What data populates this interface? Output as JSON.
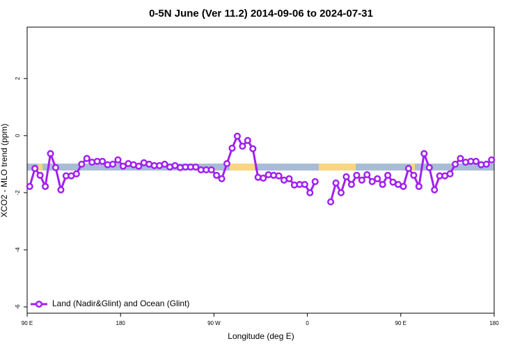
{
  "chart_data": {
    "type": "line",
    "title": "0-5N June (Ver 11.2)   2014-09-06 to 2024-07-31",
    "xlabel": "Longitude (deg E)",
    "ylabel": "XCO2 - MLO trend (ppm)",
    "xlim": [
      90,
      540
    ],
    "ylim": [
      -6.22,
      3.8
    ],
    "xticks": [
      {
        "value": 90,
        "label": "90 E"
      },
      180,
      {
        "value": 270,
        "label": "90 W"
      },
      {
        "value": 360,
        "label": "0"
      },
      {
        "value": 450,
        "label": "90 E"
      },
      {
        "value": 540,
        "label": "180"
      }
    ],
    "yticks": [
      -6,
      -4,
      -2,
      0,
      2
    ],
    "legend": "bottom-left",
    "x": [
      92.5,
      97.5,
      102.5,
      107.5,
      112.5,
      117.5,
      122.5,
      127.5,
      132.5,
      137.5,
      142.5,
      147.5,
      152.5,
      157.5,
      162.5,
      167.5,
      172.5,
      177.5,
      182.5,
      187.5,
      192.5,
      197.5,
      202.5,
      207.5,
      212.5,
      217.5,
      222.5,
      227.5,
      232.5,
      237.5,
      242.5,
      247.5,
      252.5,
      257.5,
      262.5,
      267.5,
      272.5,
      277.5,
      282.5,
      287.5,
      292.5,
      297.5,
      302.5,
      307.5,
      312.5,
      317.5,
      322.5,
      327.5,
      332.5,
      337.5,
      342.5,
      347.5,
      352.5,
      357.5,
      362.5,
      367.5,
      372.5,
      377.5,
      382.5,
      387.5,
      392.5,
      397.5,
      402.5,
      407.5,
      412.5,
      417.5,
      422.5,
      427.5,
      432.5,
      437.5,
      442.5,
      447.5,
      452.5,
      457.5,
      462.5,
      467.5,
      472.5,
      477.5,
      482.5,
      487.5,
      492.5,
      497.5,
      502.5,
      507.5,
      512.5,
      517.5,
      522.5,
      527.5,
      532.5,
      537.5
    ],
    "series": [
      {
        "name": "Land (Nadir&Glint) and Ocean (Glint)",
        "color": "#a020f0",
        "values": [
          -1.78,
          -1.15,
          -1.39,
          -1.78,
          -0.63,
          -1.12,
          -1.9,
          -1.41,
          -1.41,
          -1.34,
          -1.0,
          -0.8,
          -0.93,
          -0.9,
          -0.9,
          -1.02,
          -1.0,
          -0.85,
          -1.07,
          -0.98,
          -1.02,
          -1.07,
          -0.95,
          -1.0,
          -1.05,
          -1.05,
          -1.0,
          -1.1,
          -1.05,
          -1.12,
          -1.1,
          -1.1,
          -1.1,
          -1.2,
          -1.2,
          -1.2,
          -1.39,
          -1.51,
          -0.98,
          -0.44,
          -0.02,
          -0.37,
          -0.17,
          -0.46,
          -1.46,
          -1.49,
          -1.37,
          -1.39,
          -1.41,
          -1.56,
          -1.51,
          -1.73,
          -1.71,
          -1.71,
          -2.0,
          -1.61,
          null,
          null,
          -2.32,
          -1.66,
          -2.0,
          -1.44,
          -1.71,
          -1.39,
          -1.56,
          -1.37,
          -1.61,
          -1.51,
          -1.71,
          -1.39,
          -1.63,
          -1.71,
          -1.78,
          -1.15,
          -1.39,
          -1.78,
          -0.63,
          -1.12,
          -1.9,
          -1.41,
          -1.41,
          -1.34,
          -1.0,
          -0.8,
          -0.93,
          -0.9,
          -0.9,
          -1.02,
          -1.0,
          -0.85
        ]
      }
    ]
  }
}
